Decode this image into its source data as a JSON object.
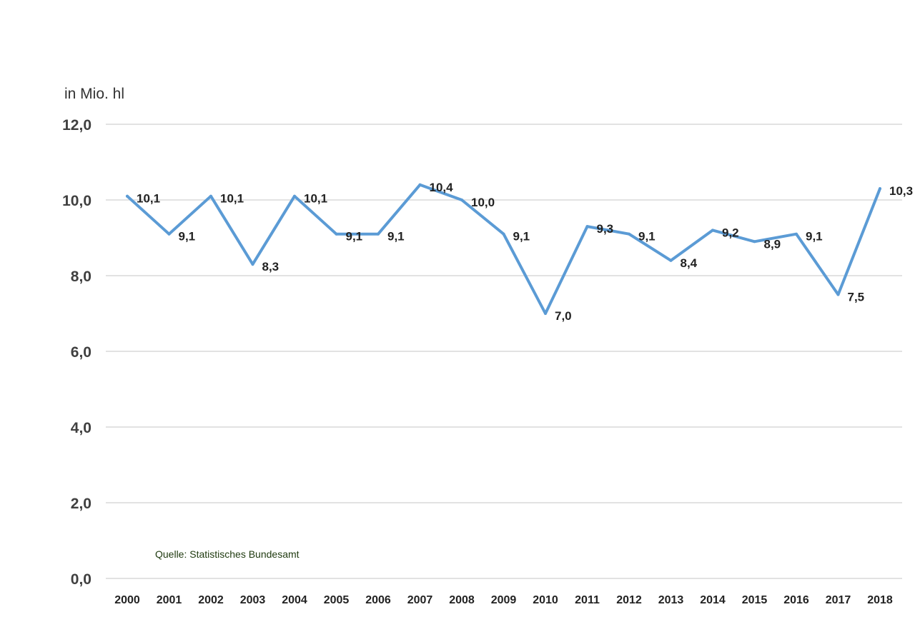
{
  "chart_data": {
    "type": "line",
    "title": "",
    "ylabel": "in Mio. hl",
    "xlabel": "",
    "ylim": [
      0,
      12
    ],
    "yticks": [
      0,
      2,
      4,
      6,
      8,
      10,
      12
    ],
    "ytick_labels": [
      "0,0",
      "2,0",
      "4,0",
      "6,0",
      "8,0",
      "10,0",
      "12,0"
    ],
    "grid": true,
    "legend": "none",
    "categories": [
      "2000",
      "2001",
      "2002",
      "2003",
      "2004",
      "2005",
      "2006",
      "2007",
      "2008",
      "2009",
      "2010",
      "2011",
      "2012",
      "2013",
      "2014",
      "2015",
      "2016",
      "2017",
      "2018"
    ],
    "series": [
      {
        "values": [
          10.1,
          9.1,
          10.1,
          8.3,
          10.1,
          9.1,
          9.1,
          10.4,
          10.0,
          9.1,
          7.0,
          9.3,
          9.1,
          8.4,
          9.2,
          8.9,
          9.1,
          7.5,
          10.3
        ],
        "labels": [
          "10,1",
          "9,1",
          "10,1",
          "8,3",
          "10,1",
          "9,1",
          "9,1",
          "10,4",
          "10,0",
          "9,1",
          "7,0",
          "9,3",
          "9,1",
          "8,4",
          "9,2",
          "8,9",
          "9,1",
          "7,5",
          "10,3"
        ],
        "color": "#5b9bd5"
      }
    ],
    "source": "Quelle: Statistisches Bundesamt"
  }
}
